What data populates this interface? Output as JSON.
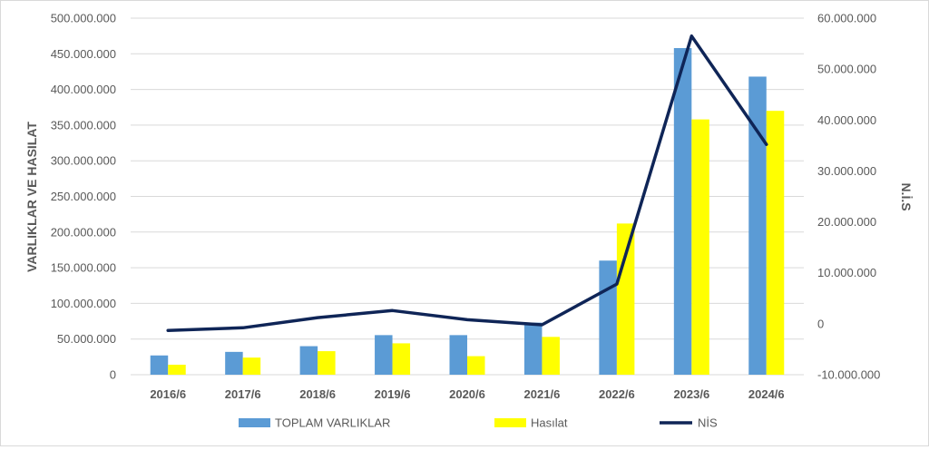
{
  "chart_data": {
    "type": "bar",
    "categories": [
      "2016/6",
      "2017/6",
      "2018/6",
      "2019/6",
      "2020/6",
      "2021/6",
      "2022/6",
      "2023/6",
      "2024/6"
    ],
    "series": [
      {
        "name": "TOPLAM VARLIKLAR",
        "type": "bar",
        "axis": "left",
        "values": [
          27000000,
          32000000,
          40000000,
          55500000,
          55500000,
          73000000,
          160000000,
          458000000,
          418000000
        ]
      },
      {
        "name": "Hasılat",
        "type": "bar",
        "axis": "left",
        "values": [
          14000000,
          24000000,
          33000000,
          44000000,
          26000000,
          53000000,
          212000000,
          358000000,
          370000000
        ]
      },
      {
        "name": "NİS",
        "type": "line",
        "axis": "right",
        "values": [
          -1300000,
          -800000,
          1200000,
          2600000,
          800000,
          -200000,
          7800000,
          56500000,
          35200000
        ]
      }
    ],
    "ylabel": "VARLIKLAR VE HASILAT",
    "y2label": "N.İ.S",
    "ylim": [
      0,
      500000000
    ],
    "y2lim": [
      -10000000,
      60000000
    ],
    "yticks": [
      "0",
      "50.000.000",
      "100.000.000",
      "150.000.000",
      "200.000.000",
      "250.000.000",
      "300.000.000",
      "350.000.000",
      "400.000.000",
      "450.000.000",
      "500.000.000"
    ],
    "y2ticks": [
      "-10.000.000",
      "0",
      "10.000.000",
      "20.000.000",
      "30.000.000",
      "40.000.000",
      "50.000.000",
      "60.000.000"
    ],
    "grid": true,
    "legend_position": "bottom",
    "colors": {
      "TOPLAM VARLIKLAR": "#5b9bd5",
      "Hasılat": "#ffff00",
      "NİS": "#0f2557"
    }
  }
}
